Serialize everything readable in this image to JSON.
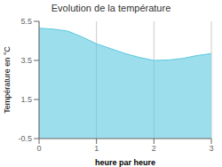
{
  "chart_data": {
    "type": "area",
    "title": "Evolution de la température",
    "x_label": "heure par heure",
    "y_label": "Température en °C",
    "x": [
      0,
      0.25,
      0.5,
      0.75,
      1.0,
      1.25,
      1.5,
      1.75,
      2.0,
      2.25,
      2.5,
      2.75,
      3.0
    ],
    "values": [
      5.15,
      5.1,
      5.0,
      4.7,
      4.35,
      4.1,
      3.85,
      3.65,
      3.5,
      3.52,
      3.6,
      3.75,
      3.85
    ],
    "color": "#5bc8e0",
    "xlim": [
      0,
      3
    ],
    "ylim": [
      -0.5,
      5.5
    ],
    "xticks": [
      0,
      1,
      2,
      3
    ],
    "yticks": [
      -0.5,
      1.5,
      3.5,
      5.5
    ],
    "grid": "x"
  }
}
